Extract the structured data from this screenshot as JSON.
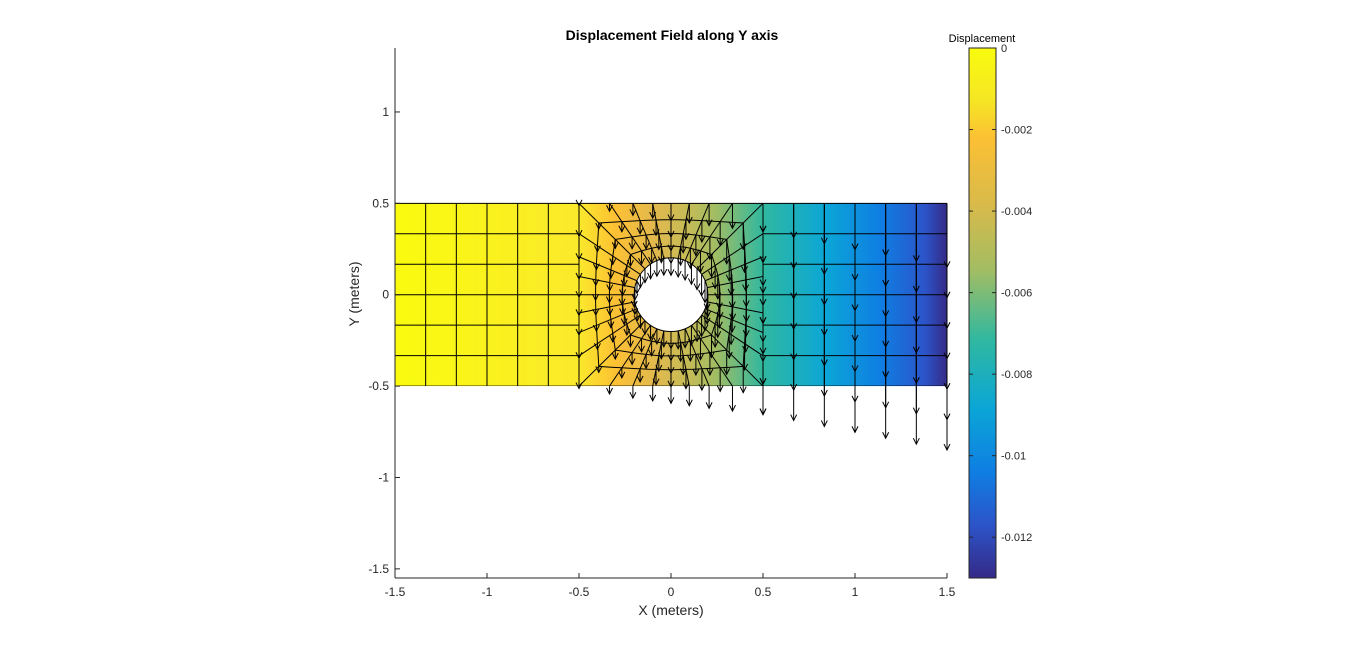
{
  "chart_data": {
    "type": "heatmap",
    "title": "Displacement Field along Y axis",
    "xlabel": "X (meters)",
    "ylabel": "Y (meters)",
    "xlim": [
      -1.5,
      1.5
    ],
    "ylim": [
      -1.55,
      1.35
    ],
    "xticks": [
      "-1.5",
      "-1",
      "-0.5",
      "0",
      "0.5",
      "1",
      "1.5"
    ],
    "yticks": [
      "-1.5",
      "-1",
      "-0.5",
      "0",
      "0.5",
      "1"
    ],
    "xtick_values": [
      -1.5,
      -1,
      -0.5,
      0,
      0.5,
      1,
      1.5
    ],
    "ytick_values": [
      -1.5,
      -1,
      -0.5,
      0,
      0.5,
      1
    ],
    "plate": {
      "x_range": [
        -1.5,
        1.5
      ],
      "y_range": [
        -0.5,
        0.5
      ]
    },
    "hole": {
      "center": [
        0,
        0
      ],
      "radius": 0.2
    },
    "grid": false,
    "colorbar": {
      "title": "Displacement",
      "range": [
        -0.013,
        0
      ],
      "ticks": [
        "0",
        "-0.002",
        "-0.004",
        "-0.006",
        "-0.008",
        "-0.01",
        "-0.012"
      ],
      "tick_values": [
        0,
        -0.002,
        -0.004,
        -0.006,
        -0.008,
        -0.01,
        -0.012
      ],
      "colormap": "parula",
      "placement": "right"
    },
    "displacement_profile": {
      "x": [
        -1.5,
        -0.5,
        -0.2,
        0.2,
        0.5,
        1.5
      ],
      "value": [
        0,
        -0.0005,
        -0.0025,
        -0.0045,
        -0.0058,
        -0.013
      ]
    },
    "quiver": {
      "direction": "negative-y",
      "description_scale": 0.35
    }
  }
}
